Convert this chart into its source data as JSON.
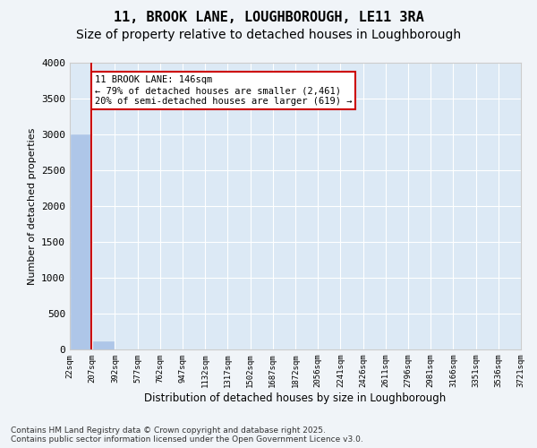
{
  "title_line1": "11, BROOK LANE, LOUGHBOROUGH, LE11 3RA",
  "title_line2": "Size of property relative to detached houses in Loughborough",
  "xlabel": "Distribution of detached houses by size in Loughborough",
  "ylabel": "Number of detached properties",
  "footer_line1": "Contains HM Land Registry data © Crown copyright and database right 2025.",
  "footer_line2": "Contains public sector information licensed under the Open Government Licence v3.0.",
  "annotation_line1": "11 BROOK LANE: 146sqm",
  "annotation_line2": "← 79% of detached houses are smaller (2,461)",
  "annotation_line3": "20% of semi-detached houses are larger (619) →",
  "bins": [
    "22sqm",
    "207sqm",
    "392sqm",
    "577sqm",
    "762sqm",
    "947sqm",
    "1132sqm",
    "1317sqm",
    "1502sqm",
    "1687sqm",
    "1872sqm",
    "2056sqm",
    "2241sqm",
    "2426sqm",
    "2611sqm",
    "2796sqm",
    "2981sqm",
    "3166sqm",
    "3351sqm",
    "3536sqm",
    "3721sqm"
  ],
  "bar_values": [
    3000,
    110,
    0,
    0,
    0,
    0,
    0,
    0,
    0,
    0,
    0,
    0,
    0,
    0,
    0,
    0,
    0,
    0,
    0,
    0
  ],
  "bar_color": "#aec6e8",
  "bar_edge_color": "#aec6e8",
  "vline_color": "#cc0000",
  "ylim": [
    0,
    4000
  ],
  "yticks": [
    0,
    500,
    1000,
    1500,
    2000,
    2500,
    3000,
    3500,
    4000
  ],
  "plot_bg_color": "#dce9f5",
  "fig_bg_color": "#f0f4f8",
  "grid_color": "#ffffff",
  "title_fontsize": 11,
  "subtitle_fontsize": 10
}
